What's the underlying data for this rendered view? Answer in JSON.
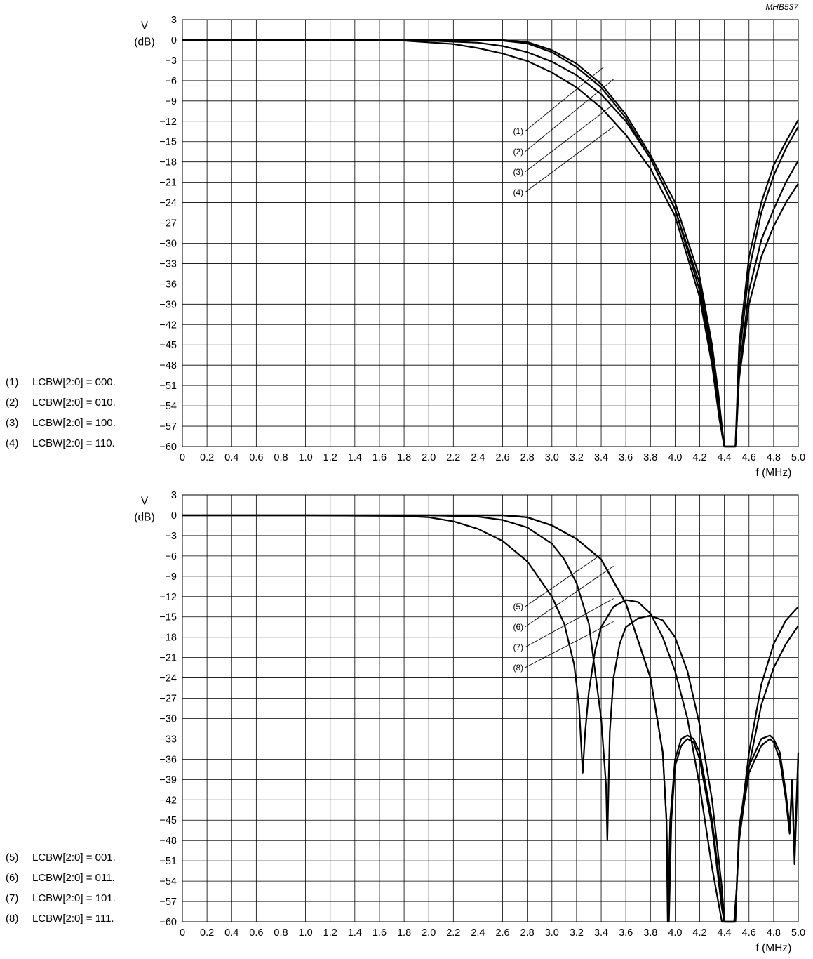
{
  "figure_code": "MHB537",
  "chart_data": [
    {
      "type": "line",
      "ylabel_line1": "V",
      "ylabel_line2": "(dB)",
      "xlabel": "f (MHz)",
      "xlim": [
        0,
        5.0
      ],
      "ylim": [
        -60,
        3
      ],
      "grid": true,
      "x_ticks": [
        "0",
        "0.2",
        "0.4",
        "0.6",
        "0.8",
        "1.0",
        "1.2",
        "1.4",
        "1.6",
        "1.8",
        "2.0",
        "2.2",
        "2.4",
        "2.6",
        "2.8",
        "3.0",
        "3.2",
        "3.4",
        "3.6",
        "3.8",
        "4.0",
        "4.2",
        "4.4",
        "4.6",
        "4.8",
        "5.0"
      ],
      "y_ticks": [
        "3",
        "0",
        "−3",
        "−6",
        "−9",
        "−12",
        "−15",
        "−18",
        "−21",
        "−24",
        "−27",
        "−30",
        "−33",
        "−36",
        "−39",
        "−42",
        "−45",
        "−48",
        "−51",
        "−54",
        "−57",
        "−60"
      ],
      "legend": [
        {
          "tag": "(1)",
          "text": "LCBW[2:0] = 000."
        },
        {
          "tag": "(2)",
          "text": "LCBW[2:0] = 010."
        },
        {
          "tag": "(3)",
          "text": "LCBW[2:0] = 100."
        },
        {
          "tag": "(4)",
          "text": "LCBW[2:0] = 110."
        }
      ],
      "series": [
        {
          "name": "(1)",
          "x": [
            0,
            1.0,
            2.0,
            2.6,
            2.8,
            3.0,
            3.2,
            3.4,
            3.6,
            3.8,
            4.0,
            4.2,
            4.3,
            4.35,
            4.38,
            4.4,
            4.49,
            4.5,
            4.52,
            4.6,
            4.7,
            4.8,
            4.9,
            5.0
          ],
          "y": [
            0,
            0,
            0,
            0,
            -0.3,
            -1.5,
            -3.5,
            -6.5,
            -11,
            -17,
            -24,
            -35,
            -45,
            -52,
            -57,
            -60,
            -60,
            -55,
            -45,
            -32,
            -24,
            -18.5,
            -15,
            -11.8
          ]
        },
        {
          "name": "(2)",
          "x": [
            0,
            1.0,
            2.0,
            2.6,
            2.8,
            3.0,
            3.2,
            3.4,
            3.6,
            3.8,
            4.0,
            4.2,
            4.3,
            4.35,
            4.38,
            4.4,
            4.49,
            4.5,
            4.52,
            4.6,
            4.7,
            4.8,
            4.9,
            5.0
          ],
          "y": [
            0,
            0,
            0,
            -0.1,
            -0.5,
            -1.8,
            -4,
            -7,
            -11.5,
            -17.5,
            -25,
            -36,
            -46,
            -53,
            -58,
            -60,
            -60,
            -56,
            -47,
            -34,
            -25.5,
            -20,
            -16,
            -12.8
          ]
        },
        {
          "name": "(3)",
          "x": [
            0,
            1.0,
            2.0,
            2.4,
            2.6,
            2.8,
            3.0,
            3.2,
            3.4,
            3.6,
            3.8,
            4.0,
            4.2,
            4.3,
            4.36,
            4.4,
            4.49,
            4.5,
            4.52,
            4.6,
            4.7,
            4.8,
            4.9,
            5.0
          ],
          "y": [
            0,
            0,
            -0.1,
            -0.4,
            -0.9,
            -1.8,
            -3.2,
            -5.2,
            -8,
            -12,
            -17.5,
            -25,
            -37,
            -47,
            -55,
            -60,
            -60,
            -57,
            -49,
            -37,
            -29.5,
            -25,
            -21,
            -17.8
          ]
        },
        {
          "name": "(4)",
          "x": [
            0,
            1.0,
            1.8,
            2.2,
            2.4,
            2.6,
            2.8,
            3.0,
            3.2,
            3.4,
            3.6,
            3.8,
            4.0,
            4.2,
            4.3,
            4.36,
            4.4,
            4.49,
            4.5,
            4.52,
            4.6,
            4.7,
            4.8,
            4.9,
            5.0
          ],
          "y": [
            0,
            0,
            -0.1,
            -0.6,
            -1.2,
            -2.0,
            -3.1,
            -4.8,
            -7,
            -10,
            -14,
            -19,
            -26,
            -38,
            -48,
            -56,
            -60,
            -60,
            -57,
            -50,
            -39,
            -32,
            -27.5,
            -24,
            -21.2
          ]
        }
      ],
      "annotations": [
        {
          "text": "(1)",
          "from": [
            2.78,
            -13.5
          ],
          "to": [
            3.42,
            -4.0
          ]
        },
        {
          "text": "(2)",
          "from": [
            2.78,
            -16.5
          ],
          "to": [
            3.5,
            -5.8
          ]
        },
        {
          "text": "(3)",
          "from": [
            2.78,
            -19.5
          ],
          "to": [
            3.5,
            -9.5
          ]
        },
        {
          "text": "(4)",
          "from": [
            2.78,
            -22.5
          ],
          "to": [
            3.5,
            -12.8
          ]
        }
      ]
    },
    {
      "type": "line",
      "ylabel_line1": "V",
      "ylabel_line2": "(dB)",
      "xlabel": "f (MHz)",
      "xlim": [
        0,
        5.0
      ],
      "ylim": [
        -60,
        3
      ],
      "grid": true,
      "x_ticks": [
        "0",
        "0.2",
        "0.4",
        "0.6",
        "0.8",
        "1.0",
        "1.2",
        "1.4",
        "1.6",
        "1.8",
        "2.0",
        "2.2",
        "2.4",
        "2.6",
        "2.8",
        "3.0",
        "3.2",
        "3.4",
        "3.6",
        "3.8",
        "4.0",
        "4.2",
        "4.4",
        "4.6",
        "4.8",
        "5.0"
      ],
      "y_ticks": [
        "3",
        "0",
        "−3",
        "−6",
        "−9",
        "−12",
        "−15",
        "−18",
        "−21",
        "−24",
        "−27",
        "−30",
        "−33",
        "−36",
        "−39",
        "−42",
        "−45",
        "−48",
        "−51",
        "−54",
        "−57",
        "−60"
      ],
      "legend": [
        {
          "tag": "(5)",
          "text": "LCBW[2:0] = 001."
        },
        {
          "tag": "(6)",
          "text": "LCBW[2:0] = 011."
        },
        {
          "tag": "(7)",
          "text": "LCBW[2:0] = 101."
        },
        {
          "tag": "(8)",
          "text": "LCBW[2:0] = 111."
        }
      ],
      "series": [
        {
          "name": "(5)",
          "x": [
            0,
            1.0,
            2.0,
            2.6,
            2.8,
            3.0,
            3.2,
            3.4,
            3.6,
            3.7,
            3.8,
            3.9,
            3.93,
            3.95,
            3.97,
            4.0,
            4.05,
            4.1,
            4.15,
            4.2,
            4.3,
            4.38,
            4.4,
            4.48,
            4.5,
            4.52,
            4.6,
            4.7,
            4.77,
            4.8,
            4.85,
            4.9,
            4.93,
            4.95,
            4.97,
            5.0
          ],
          "y": [
            0,
            0,
            0,
            0,
            -0.3,
            -1.5,
            -3.5,
            -6.5,
            -13,
            -18.5,
            -24,
            -35,
            -45,
            -60,
            -45,
            -37,
            -34,
            -33,
            -33.5,
            -36,
            -46,
            -58,
            -60,
            -60,
            -55,
            -47,
            -38,
            -34,
            -33,
            -33.5,
            -36,
            -42,
            -47,
            -40,
            -51.5,
            -36
          ]
        },
        {
          "name": "(6)",
          "x": [
            0,
            1.0,
            2.0,
            2.6,
            2.8,
            3.0,
            3.2,
            3.4,
            3.6,
            3.7,
            3.8,
            3.9,
            3.93,
            3.94,
            3.96,
            4.0,
            4.05,
            4.1,
            4.15,
            4.2,
            4.3,
            4.38,
            4.4,
            4.48,
            4.5,
            4.52,
            4.6,
            4.7,
            4.77,
            4.8,
            4.85,
            4.9,
            4.93,
            4.95,
            4.97,
            5.0
          ],
          "y": [
            0,
            0,
            0,
            0,
            -0.3,
            -1.5,
            -3.5,
            -6.5,
            -13,
            -18.5,
            -24,
            -35,
            -45,
            -60,
            -45,
            -36,
            -33,
            -32.5,
            -33,
            -35,
            -45,
            -57,
            -60,
            -60,
            -55,
            -46,
            -37,
            -33,
            -32.5,
            -33,
            -35,
            -41,
            -46,
            -39,
            -50,
            -35
          ]
        },
        {
          "name": "(7)",
          "x": [
            0,
            1.0,
            2.0,
            2.4,
            2.6,
            2.8,
            3.0,
            3.1,
            3.2,
            3.3,
            3.4,
            3.44,
            3.45,
            3.47,
            3.5,
            3.55,
            3.6,
            3.7,
            3.8,
            3.9,
            4.0,
            4.1,
            4.2,
            4.3,
            4.38,
            4.4,
            4.49,
            4.5,
            4.52,
            4.6,
            4.7,
            4.8,
            4.9,
            5.0
          ],
          "y": [
            0,
            0,
            0,
            -0.2,
            -0.7,
            -1.8,
            -4.2,
            -6.5,
            -10,
            -16,
            -30,
            -40,
            -48,
            -32,
            -24,
            -19,
            -16.5,
            -15.2,
            -14.8,
            -15.5,
            -18,
            -23,
            -31,
            -42,
            -55,
            -60,
            -60,
            -55,
            -48,
            -37,
            -28,
            -22.5,
            -19,
            -16.3
          ]
        },
        {
          "name": "(8)",
          "x": [
            0,
            1.0,
            1.8,
            2.0,
            2.2,
            2.4,
            2.6,
            2.8,
            3.0,
            3.1,
            3.18,
            3.22,
            3.25,
            3.27,
            3.3,
            3.35,
            3.4,
            3.5,
            3.6,
            3.7,
            3.8,
            3.9,
            4.0,
            4.1,
            4.2,
            4.3,
            4.38,
            4.4,
            4.49,
            4.5,
            4.52,
            4.6,
            4.7,
            4.8,
            4.9,
            5.0
          ],
          "y": [
            0,
            0,
            -0.1,
            -0.3,
            -0.9,
            -2.0,
            -3.8,
            -6.8,
            -12,
            -16,
            -22,
            -28,
            -38,
            -32,
            -26,
            -20,
            -16.5,
            -13.5,
            -12.5,
            -12.8,
            -14.5,
            -18,
            -23,
            -30,
            -40,
            -52,
            -60,
            -60,
            -60,
            -55,
            -47,
            -35,
            -25,
            -19,
            -15.5,
            -13.5
          ]
        }
      ],
      "annotations": [
        {
          "text": "(5)",
          "from": [
            2.78,
            -13.5
          ],
          "to": [
            3.4,
            -5.8
          ]
        },
        {
          "text": "(6)",
          "from": [
            2.78,
            -16.5
          ],
          "to": [
            3.5,
            -7.5
          ]
        },
        {
          "text": "(7)",
          "from": [
            2.78,
            -19.5
          ],
          "to": [
            3.5,
            -12.3
          ]
        },
        {
          "text": "(8)",
          "from": [
            2.78,
            -22.5
          ],
          "to": [
            3.5,
            -15.7
          ]
        }
      ]
    }
  ]
}
